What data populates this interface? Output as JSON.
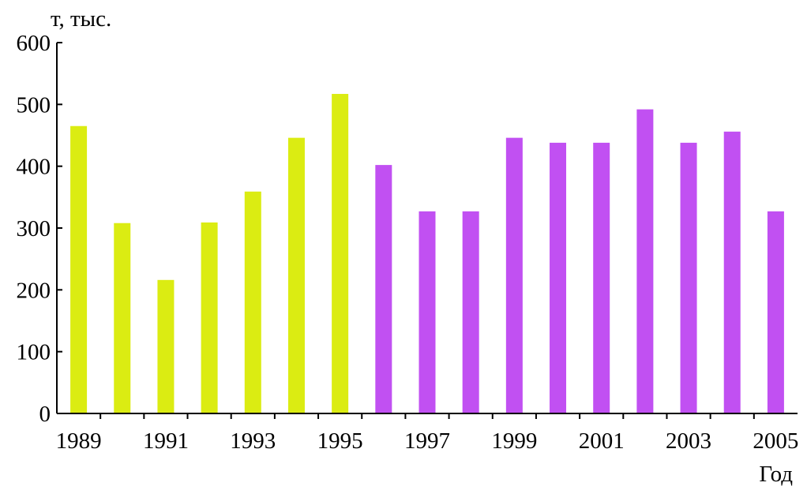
{
  "chart_data": {
    "type": "bar",
    "ylabel": "т, тыс.",
    "xlabel": "Год",
    "ylim": [
      0,
      600
    ],
    "yticks": [
      0,
      100,
      200,
      300,
      400,
      500,
      600
    ],
    "xtick_labels": [
      "1989",
      "1991",
      "1993",
      "1995",
      "1997",
      "1999",
      "2001",
      "2003",
      "2005"
    ],
    "categories": [
      "1989",
      "1990",
      "1991",
      "1992",
      "1993",
      "1994",
      "1995",
      "1996",
      "1997",
      "1998",
      "1999",
      "2000",
      "2001",
      "2002",
      "2003",
      "2004",
      "2005"
    ],
    "values": [
      465,
      308,
      216,
      309,
      359,
      446,
      517,
      402,
      327,
      327,
      446,
      438,
      438,
      492,
      438,
      456,
      327
    ],
    "bar_colors": [
      "#dbec12",
      "#dbec12",
      "#dbec12",
      "#dbec12",
      "#dbec12",
      "#dbec12",
      "#dbec12",
      "#c150f2",
      "#c150f2",
      "#c150f2",
      "#c150f2",
      "#c150f2",
      "#c150f2",
      "#c150f2",
      "#c150f2",
      "#c150f2",
      "#c150f2"
    ],
    "grid": false,
    "legend": "none"
  }
}
